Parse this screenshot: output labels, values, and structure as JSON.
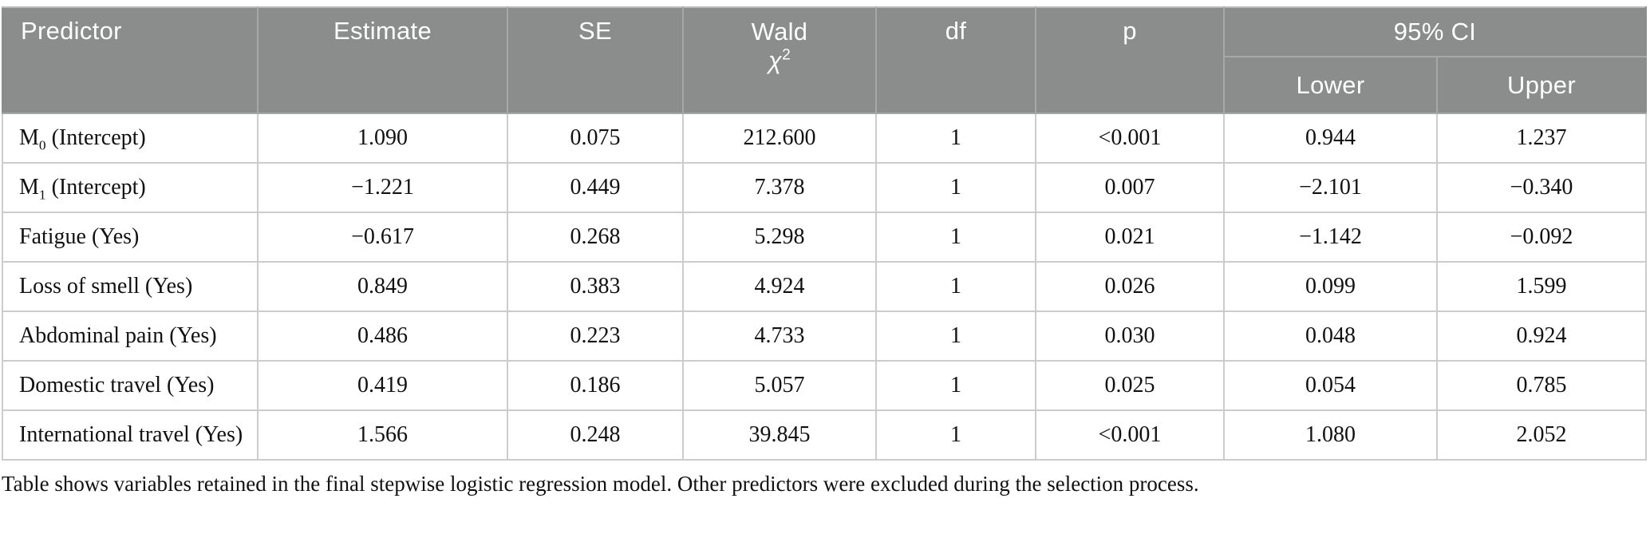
{
  "header": {
    "predictor": "Predictor",
    "estimate": "Estimate",
    "se": "SE",
    "wald_word": "Wald",
    "wald_chi": "χ",
    "wald_sup": "2",
    "df": "df",
    "p": "p",
    "ci": "95% CI",
    "lower": "Lower",
    "upper": "Upper"
  },
  "rows": [
    {
      "predictor_base": "M",
      "predictor_sub": "0",
      "predictor_rest": " (Intercept)",
      "estimate": "1.090",
      "se": "0.075",
      "wald": "212.600",
      "df": "1",
      "p": "<0.001",
      "lower": "0.944",
      "upper": "1.237"
    },
    {
      "predictor_base": "M",
      "predictor_sub": "1",
      "predictor_rest": " (Intercept)",
      "estimate": "−1.221",
      "se": "0.449",
      "wald": "7.378",
      "df": "1",
      "p": "0.007",
      "lower": "−2.101",
      "upper": "−0.340"
    },
    {
      "predictor_base": "Fatigue (Yes)",
      "estimate": "−0.617",
      "se": "0.268",
      "wald": "5.298",
      "df": "1",
      "p": "0.021",
      "lower": "−1.142",
      "upper": "−0.092"
    },
    {
      "predictor_base": "Loss of smell (Yes)",
      "estimate": "0.849",
      "se": "0.383",
      "wald": "4.924",
      "df": "1",
      "p": "0.026",
      "lower": "0.099",
      "upper": "1.599"
    },
    {
      "predictor_base": "Abdominal pain (Yes)",
      "estimate": "0.486",
      "se": "0.223",
      "wald": "4.733",
      "df": "1",
      "p": "0.030",
      "lower": "0.048",
      "upper": "0.924"
    },
    {
      "predictor_base": "Domestic travel (Yes)",
      "estimate": "0.419",
      "se": "0.186",
      "wald": "5.057",
      "df": "1",
      "p": "0.025",
      "lower": "0.054",
      "upper": "0.785"
    },
    {
      "predictor_base": "International travel (Yes)",
      "estimate": "1.566",
      "se": "0.248",
      "wald": "39.845",
      "df": "1",
      "p": "<0.001",
      "lower": "1.080",
      "upper": "2.052"
    }
  ],
  "footnote": "Table shows variables retained in the final stepwise logistic regression model. Other predictors were excluded during the selection process.",
  "colors": {
    "header_bg": "#8a8d8b",
    "header_text": "#fdfdfd",
    "header_border": "#a5a8a6",
    "body_border": "#cbcdcc",
    "text": "#111111"
  }
}
